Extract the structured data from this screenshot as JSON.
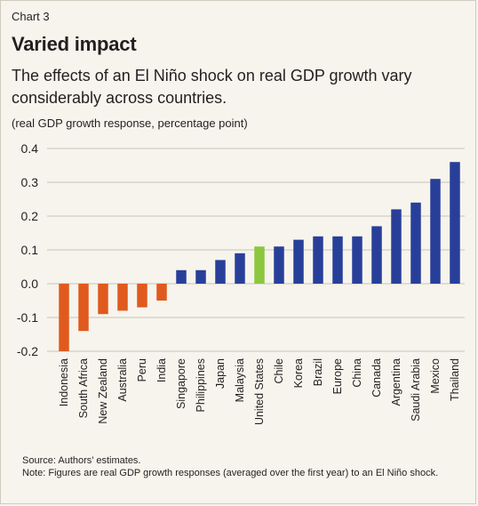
{
  "header": {
    "label": "Chart 3",
    "title": "Varied impact",
    "subtitle": "The effects of an El Niño shock on real GDP growth vary considerably across countries.",
    "unit": "(real GDP growth response, percentage point)"
  },
  "footer": {
    "source": "Source: Authors’ estimates.",
    "note": "Note: Figures are real GDP growth responses (averaged over the first year) to an El Niño shock."
  },
  "colors": {
    "negative": "#e05a1e",
    "positive": "#283f9a",
    "highlight": "#8dc63f",
    "gridline": "#c8c4b8"
  },
  "chart_data": {
    "type": "bar",
    "title": "Varied impact",
    "ylabel": "(real GDP growth response, percentage point)",
    "ylim": [
      -0.2,
      0.4
    ],
    "yticks": [
      "-0.2",
      "-0.1",
      "0.0",
      "0.1",
      "0.2",
      "0.3",
      "0.4"
    ],
    "grid": true,
    "categories": [
      "Indonesia",
      "South Africa",
      "New Zealand",
      "Australia",
      "Peru",
      "India",
      "Singapore",
      "Philippines",
      "Japan",
      "Malaysia",
      "United States",
      "Chile",
      "Korea",
      "Brazil",
      "Europe",
      "China",
      "Canada",
      "Argentina",
      "Saudi Arabia",
      "Mexico",
      "Thailand"
    ],
    "values": [
      -0.2,
      -0.14,
      -0.09,
      -0.08,
      -0.07,
      -0.05,
      0.04,
      0.04,
      0.07,
      0.09,
      0.11,
      0.11,
      0.13,
      0.14,
      0.14,
      0.14,
      0.17,
      0.22,
      0.24,
      0.31,
      0.36
    ],
    "highlight_category": "United States"
  }
}
